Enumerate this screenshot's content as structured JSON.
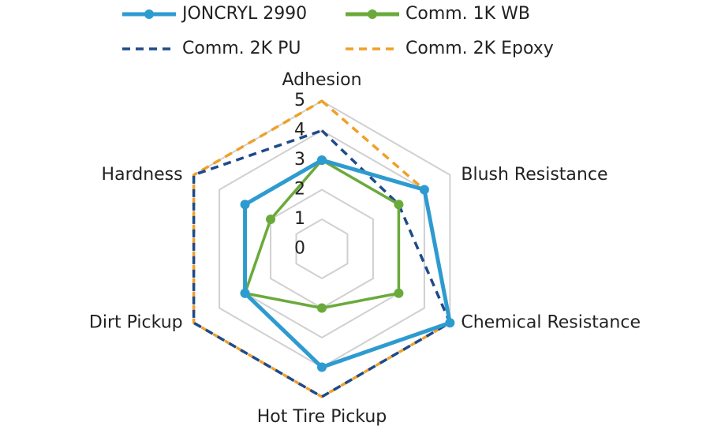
{
  "chart_data": {
    "type": "radar",
    "categories": [
      "Adhesion",
      "Blush Resistance",
      "Chemical Resistance",
      "Hot Tire Pickup",
      "Dirt Pickup",
      "Hardness"
    ],
    "series": [
      {
        "name": "JONCRYL 2990",
        "color": "#2e9bd0",
        "line_style": "solid",
        "marker": "circle",
        "values": [
          3,
          4,
          5,
          4,
          3,
          3
        ]
      },
      {
        "name": "Comm. 1K WB",
        "color": "#6aaa3a",
        "line_style": "solid",
        "marker": "circle",
        "values": [
          3,
          3,
          3,
          2,
          3,
          2
        ]
      },
      {
        "name": "Comm. 2K PU",
        "color": "#1f4a8a",
        "line_style": "dashed",
        "marker": "none",
        "values": [
          4,
          3,
          5,
          5,
          5,
          5
        ]
      },
      {
        "name": "Comm. 2K Epoxy",
        "color": "#f0a028",
        "line_style": "dashed",
        "marker": "none",
        "values": [
          5,
          4,
          5,
          5,
          5,
          5
        ]
      }
    ],
    "rlim": [
      0,
      5
    ],
    "rticks": [
      0,
      1,
      2,
      3,
      4,
      5
    ],
    "grid": true,
    "legend": "top"
  }
}
